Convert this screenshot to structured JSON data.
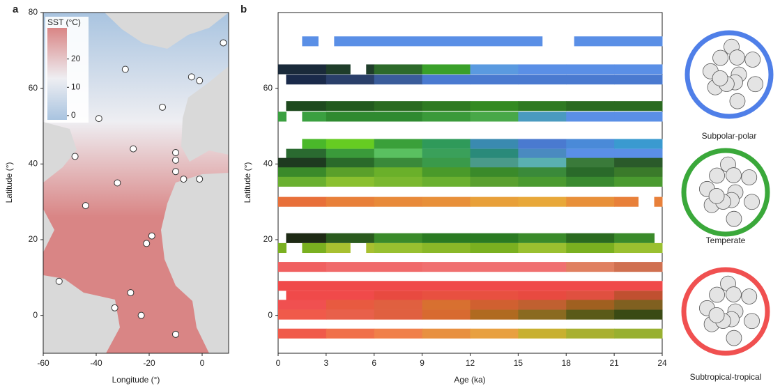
{
  "chart_data": [
    {
      "type": "scatter",
      "panel": "a",
      "xlabel": "Longitude (°)",
      "ylabel": "Latitude (°)",
      "xlim": [
        -60,
        10
      ],
      "ylim": [
        -10,
        80
      ],
      "xticks": [
        -60,
        -40,
        -20,
        0
      ],
      "yticks": [
        0,
        20,
        40,
        60,
        80
      ],
      "x": [
        8,
        -29,
        -4,
        -1,
        -15,
        -39,
        -26,
        -48,
        -10,
        -10,
        -10,
        -7,
        -1,
        -32,
        -44,
        -19,
        -21,
        -54,
        -27,
        -33,
        -23,
        -10
      ],
      "y": [
        72,
        65,
        63,
        62,
        55,
        52,
        44,
        42,
        43,
        41,
        38,
        36,
        36,
        35,
        29,
        21,
        19,
        9,
        6,
        2,
        0,
        -5
      ],
      "color": "#ffffff",
      "colorbar": {
        "label": "SST (°C)",
        "lim": [
          -1.5,
          31
        ],
        "ticks": [
          0,
          10,
          20
        ],
        "colors": [
          "#a9c4e0",
          "#eeeef2",
          "#d98585"
        ]
      }
    },
    {
      "type": "timeline",
      "panel": "b",
      "xlabel": "Age (ka)",
      "ylabel": "Latitude (°)",
      "xlim": [
        0,
        24
      ],
      "ylim": [
        -10,
        80
      ],
      "xticks": [
        0,
        3,
        6,
        9,
        12,
        15,
        18,
        21,
        24
      ],
      "yticks": [
        0,
        20,
        40,
        60
      ],
      "row_height": 2.6,
      "rows": [
        {
          "y": 72.4,
          "spans": [
            [
              1.5,
              2.5
            ],
            [
              3.5,
              16.5
            ],
            [
              18.5,
              24
            ]
          ],
          "colors": [
            "#5a8fe6"
          ]
        },
        {
          "y": 65,
          "spans": [
            [
              0,
              4.5
            ],
            [
              5.5,
              24
            ]
          ],
          "colors": [
            "#1a2a3a",
            "#1f3d2a",
            "#2d6a2a",
            "#3aa02a",
            "#5a9ae0",
            "#5a8fe6",
            "#5a8fe6",
            "#5a8fe6"
          ]
        },
        {
          "y": 62.3,
          "spans": [
            [
              0.5,
              24
            ]
          ],
          "colors": [
            "#1a2a4a",
            "#2a3f6a",
            "#3a5c9a",
            "#4a7ad0",
            "#4a7ad0",
            "#4a7ad0",
            "#4a7ad0",
            "#4a7ad0"
          ]
        },
        {
          "y": 55.3,
          "spans": [
            [
              0.5,
              24
            ]
          ],
          "colors": [
            "#1e4a1e",
            "#225a1e",
            "#2a6a20",
            "#2f7a22",
            "#348a22",
            "#2f7a22",
            "#2a6a20",
            "#2a6a20"
          ]
        },
        {
          "y": 52.5,
          "spans": [
            [
              0,
              0.5
            ],
            [
              1.5,
              24
            ]
          ],
          "colors": [
            "#3aa040",
            "#2f8a30",
            "#2f8a30",
            "#3a9a3a",
            "#48a848",
            "#4a9ac0",
            "#5a8fe6",
            "#5a8fe6"
          ]
        },
        {
          "y": 45.3,
          "spans": [
            [
              1.5,
              24
            ]
          ],
          "colors": [
            "#4ab82a",
            "#66cc22",
            "#3aa03a",
            "#2f9a5a",
            "#3a8ab0",
            "#4a7ad0",
            "#4a8ad8",
            "#3a9ad0"
          ]
        },
        {
          "y": 42.7,
          "spans": [
            [
              0.5,
              24
            ]
          ],
          "colors": [
            "#2a6a30",
            "#3a9a3a",
            "#5ac060",
            "#3aa05a",
            "#2a8a7a",
            "#4a8ac0",
            "#5a8fe6",
            "#5a8fe6"
          ]
        },
        {
          "y": 40.3,
          "spans": [
            [
              0,
              24
            ]
          ],
          "colors": [
            "#1e3a20",
            "#2a6a2a",
            "#3a8a3a",
            "#3a9a4a",
            "#4a9a8a",
            "#5ab0b0",
            "#3a7a3a",
            "#2a5a2a"
          ]
        },
        {
          "y": 37.8,
          "spans": [
            [
              0,
              24
            ]
          ],
          "colors": [
            "#3a8a2a",
            "#5aa02a",
            "#6ab02a",
            "#4a9a2a",
            "#3a8a2a",
            "#3a8a3a",
            "#2a6a2a",
            "#3a7a2a"
          ]
        },
        {
          "y": 35.3,
          "spans": [
            [
              0,
              24
            ]
          ],
          "colors": [
            "#6ab030",
            "#8ac030",
            "#7ab830",
            "#6ab030",
            "#5aa030",
            "#4a9a30",
            "#3a8a30",
            "#4a9a30"
          ]
        },
        {
          "y": 30,
          "spans": [
            [
              0,
              22.5
            ],
            [
              23.5,
              24
            ]
          ],
          "colors": [
            "#e8703a",
            "#e8803a",
            "#e88a3a",
            "#e8903a",
            "#e8a03a",
            "#e8a83a",
            "#e8903a",
            "#e8803a"
          ]
        },
        {
          "y": 20.4,
          "spans": [
            [
              0.5,
              23.5
            ]
          ],
          "colors": [
            "#1e2a14",
            "#2a5a1e",
            "#3a8a2a",
            "#2a7a22",
            "#2a7a22",
            "#3a8a2a",
            "#2a6a20",
            "#3a8a2a"
          ]
        },
        {
          "y": 17.8,
          "spans": [
            [
              0,
              0.5
            ],
            [
              1.5,
              4.5
            ],
            [
              5.5,
              24
            ]
          ],
          "colors": [
            "#7ab020",
            "#a8c030",
            "#98c030",
            "#8ab828",
            "#7ab020",
            "#9ac030",
            "#7ab020",
            "#9ac030"
          ]
        },
        {
          "y": 12.8,
          "spans": [
            [
              0,
              24
            ]
          ],
          "colors": [
            "#f06060",
            "#f06a6a",
            "#f06a6a",
            "#f07070",
            "#f07070",
            "#f07070",
            "#e08060",
            "#d07050"
          ]
        },
        {
          "y": 7.8,
          "spans": [
            [
              0,
              24
            ]
          ],
          "colors": [
            "#f04a4a"
          ]
        },
        {
          "y": 5.2,
          "spans": [
            [
              0.5,
              24
            ]
          ],
          "colors": [
            "#f04a4a",
            "#f04a4a",
            "#e84a40",
            "#e85040",
            "#e85040",
            "#e84a40",
            "#e05040",
            "#c05030"
          ]
        },
        {
          "y": 2.8,
          "spans": [
            [
              0,
              24
            ]
          ],
          "colors": [
            "#f05050",
            "#e85a40",
            "#e06040",
            "#d87030",
            "#d06030",
            "#c06030",
            "#a06020",
            "#806020"
          ]
        },
        {
          "y": 0.2,
          "spans": [
            [
              0,
              24
            ]
          ],
          "colors": [
            "#f05a4a",
            "#e8604a",
            "#e06040",
            "#d86a30",
            "#b06a20",
            "#8a6a20",
            "#5a5a18",
            "#3a4a14"
          ]
        },
        {
          "y": -4.8,
          "spans": [
            [
              0,
              24
            ]
          ],
          "colors": [
            "#f05a4a",
            "#f0704a",
            "#f0804a",
            "#e89040",
            "#e8a040",
            "#c8b030",
            "#a8b030",
            "#98b030"
          ]
        }
      ],
      "legend": [
        {
          "label": "Subpolar-polar",
          "color": "#4f7fe8"
        },
        {
          "label": "Temperate",
          "color": "#3aa83a"
        },
        {
          "label": "Subtropical-tropical",
          "color": "#f05050"
        }
      ]
    }
  ]
}
